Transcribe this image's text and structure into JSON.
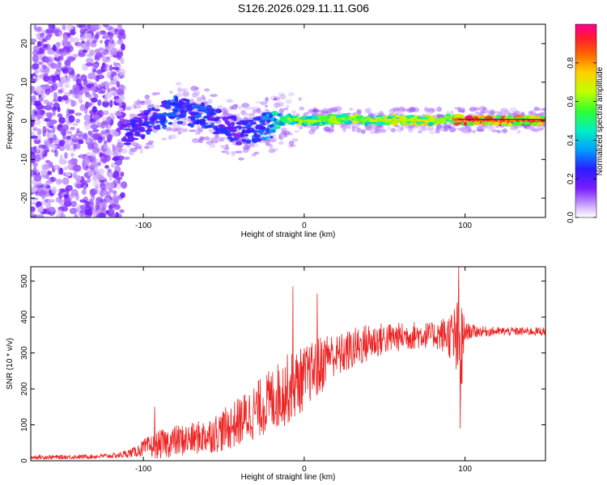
{
  "title": "S126.2026.029.11.11.G06",
  "colors": {
    "snr_line": "#ee2222",
    "cursor_line": "#222222"
  },
  "chart_data": [
    {
      "type": "heatmap",
      "name": "spectrogram",
      "xlabel": "Height of straight line (km)",
      "ylabel": "Frequency (Hz)",
      "xlim": [
        -170,
        150
      ],
      "ylim": [
        -25,
        25
      ],
      "x_ticks": [
        -100,
        0,
        100
      ],
      "x_tick_labels": [
        "-100",
        "0",
        "100"
      ],
      "y_ticks": [
        -20,
        -10,
        0,
        10,
        20
      ],
      "y_tick_labels": [
        "-20",
        "-10",
        "0",
        "10",
        "20"
      ],
      "colorbar": {
        "label": "Normalized spectral amplitude",
        "range": [
          0,
          1
        ],
        "ticks": [
          0.0,
          0.2,
          0.4,
          0.6,
          0.8
        ],
        "tick_labels": [
          "0.0",
          "0.2",
          "0.4",
          "0.6",
          "0.8"
        ]
      },
      "ridge": {
        "x": [
          -170,
          -115,
          -110,
          -100,
          -90,
          -80,
          -70,
          -60,
          -50,
          -40,
          -30,
          -20,
          -15,
          -10,
          0,
          10,
          20,
          30,
          40,
          60,
          80,
          90,
          95,
          100,
          120,
          150
        ],
        "freq": [
          0,
          0,
          -3,
          -1,
          1,
          3,
          2,
          1,
          -1,
          -3,
          -2,
          -1,
          0,
          0.5,
          0,
          0,
          0.5,
          0.5,
          0,
          0.3,
          0,
          0.5,
          0.3,
          0.2,
          0.1,
          0.1
        ],
        "amplitude": [
          0.15,
          0.15,
          0.25,
          0.25,
          0.3,
          0.3,
          0.3,
          0.3,
          0.25,
          0.25,
          0.3,
          0.4,
          0.5,
          0.6,
          0.65,
          0.6,
          0.65,
          0.6,
          0.65,
          0.7,
          0.7,
          0.6,
          0.85,
          0.9,
          0.9,
          0.9
        ]
      }
    },
    {
      "type": "line",
      "name": "snr",
      "xlabel": "Height of straight line (km)",
      "ylabel": "SNR (10 * v/v)",
      "xlim": [
        -170,
        150
      ],
      "ylim": [
        0,
        540
      ],
      "x_ticks": [
        -100,
        0,
        100
      ],
      "x_tick_labels": [
        "-100",
        "0",
        "100"
      ],
      "y_ticks": [
        0,
        100,
        200,
        300,
        400,
        500
      ],
      "y_tick_labels": [
        "0",
        "100",
        "200",
        "300",
        "400",
        "500"
      ],
      "series": [
        {
          "name": "SNR",
          "x": [
            -170,
            -150,
            -130,
            -115,
            -105,
            -100,
            -90,
            -80,
            -70,
            -60,
            -50,
            -40,
            -30,
            -20,
            -10,
            0,
            5,
            10,
            15,
            20,
            30,
            40,
            50,
            60,
            70,
            80,
            90,
            95,
            98,
            100,
            110,
            120,
            130,
            140,
            150
          ],
          "mean": [
            10,
            10,
            12,
            15,
            25,
            35,
            45,
            55,
            60,
            70,
            85,
            110,
            140,
            170,
            200,
            230,
            250,
            260,
            300,
            290,
            310,
            330,
            340,
            345,
            350,
            350,
            350,
            330,
            300,
            360,
            360,
            360,
            360,
            360,
            360
          ],
          "spread": [
            6,
            6,
            6,
            8,
            15,
            25,
            40,
            45,
            45,
            50,
            60,
            70,
            80,
            90,
            100,
            90,
            80,
            90,
            60,
            60,
            60,
            55,
            45,
            40,
            40,
            35,
            60,
            120,
            150,
            25,
            15,
            12,
            12,
            12,
            12
          ]
        }
      ],
      "peaks": [
        {
          "x": -93,
          "y": 150
        },
        {
          "x": -7,
          "y": 485
        },
        {
          "x": 8,
          "y": 465
        },
        {
          "x": 96,
          "y": 540
        },
        {
          "x": 97,
          "y": 90
        }
      ]
    }
  ]
}
